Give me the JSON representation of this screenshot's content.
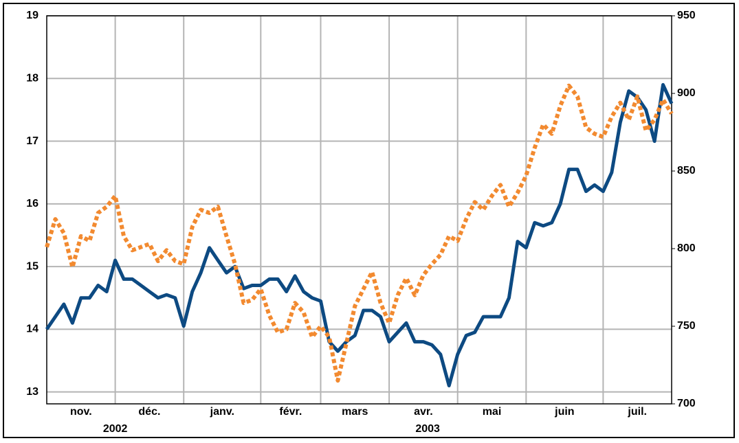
{
  "chart_data": {
    "type": "line",
    "categories": [
      "nov.",
      null,
      null,
      null,
      null,
      null,
      null,
      null,
      "déc.",
      null,
      null,
      null,
      null,
      null,
      null,
      null,
      "janv.",
      null,
      null,
      null,
      null,
      null,
      null,
      null,
      null,
      "févr.",
      null,
      null,
      null,
      null,
      null,
      null,
      "mars",
      null,
      null,
      null,
      null,
      null,
      null,
      null,
      "avr.",
      null,
      null,
      null,
      null,
      null,
      null,
      null,
      "mai",
      null,
      null,
      null,
      null,
      null,
      null,
      null,
      "juin",
      null,
      null,
      null,
      null,
      null,
      null,
      null,
      null,
      "juil.",
      null,
      null,
      null,
      null,
      null,
      null,
      null,
      null
    ],
    "year_labels": [
      "2002",
      "2003"
    ],
    "series": [
      {
        "color": "#0d4a82",
        "style": "solid",
        "axis": "y",
        "values": [
          14.0,
          14.2,
          14.4,
          14.1,
          14.5,
          14.5,
          14.7,
          14.6,
          15.1,
          14.8,
          14.8,
          14.7,
          14.6,
          14.5,
          14.55,
          14.5,
          14.05,
          14.6,
          14.9,
          15.3,
          15.1,
          14.9,
          15.0,
          14.65,
          14.7,
          14.7,
          14.8,
          14.8,
          14.6,
          14.85,
          14.6,
          14.5,
          14.45,
          13.8,
          13.65,
          13.8,
          13.9,
          14.3,
          14.3,
          14.2,
          13.8,
          13.95,
          14.1,
          13.8,
          13.8,
          13.75,
          13.6,
          13.1,
          13.6,
          13.9,
          13.95,
          14.2,
          14.2,
          14.2,
          14.5,
          15.4,
          15.3,
          15.7,
          15.65,
          15.7,
          16.0,
          16.55,
          16.55,
          16.2,
          16.3,
          16.2,
          16.5,
          17.3,
          17.8,
          17.7,
          17.5,
          17.0,
          17.9,
          17.6
        ]
      },
      {
        "color": "#f28a30",
        "style": "dotted",
        "axis": "y2",
        "values": [
          801,
          819,
          810,
          788,
          808,
          805,
          823,
          827,
          834,
          808,
          799,
          801,
          803,
          792,
          799,
          792,
          790,
          814,
          825,
          823,
          827,
          808,
          790,
          765,
          767,
          774,
          757,
          746,
          748,
          765,
          759,
          743,
          750,
          743,
          715,
          739,
          763,
          774,
          785,
          765,
          752,
          770,
          781,
          770,
          783,
          790,
          796,
          808,
          805,
          819,
          830,
          825,
          834,
          841,
          827,
          836,
          847,
          865,
          880,
          874,
          892,
          905,
          898,
          878,
          874,
          872,
          885,
          894,
          883,
          898,
          876,
          883,
          896,
          887
        ]
      }
    ],
    "ylim": [
      12.81,
      19
    ],
    "yticks": [
      13,
      14,
      15,
      16,
      17,
      18,
      19
    ],
    "y2lim": [
      700,
      950
    ],
    "y2ticks": [
      700,
      750,
      800,
      850,
      900,
      950
    ],
    "grid": true
  }
}
